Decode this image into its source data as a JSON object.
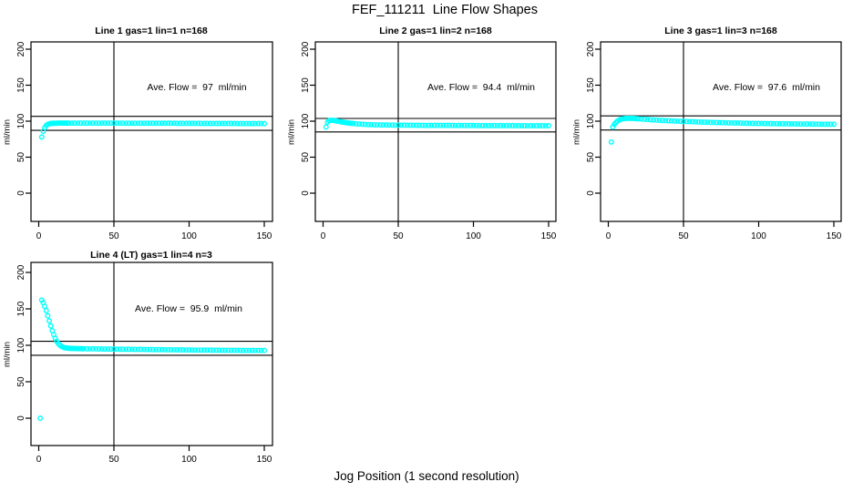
{
  "figure": {
    "title": "FEF_111211  Line Flow Shapes",
    "xlabel": "Jog Position (1 second resolution)",
    "background": "#ffffff",
    "point_color": "#00ffff",
    "line_color": "#000000"
  },
  "chart_data": [
    {
      "type": "scatter",
      "title": "Line 1 gas=1 lin=1 n=168",
      "ylabel": "ml/min",
      "ave_flow_label": "Ave. Flow =  97  ml/min",
      "ave_flow_value": 97,
      "n": 168,
      "xlim": [
        0,
        150
      ],
      "ylim": [
        0,
        200
      ],
      "x_ticks": [
        0,
        50,
        100,
        150
      ],
      "y_ticks": [
        0,
        50,
        100,
        150,
        200
      ],
      "vline_x": 50,
      "hlines": [
        106.7,
        87.3
      ],
      "points": [
        [
          2,
          78
        ],
        [
          3,
          86
        ],
        [
          4,
          91
        ],
        [
          5,
          94
        ],
        [
          6,
          95.5
        ],
        [
          7,
          96.3
        ],
        [
          8,
          96.8
        ],
        [
          9,
          97
        ],
        [
          10,
          97.1
        ],
        [
          11,
          97.2
        ],
        [
          12,
          97.2
        ],
        [
          13,
          97.3
        ],
        [
          14,
          97.3
        ],
        [
          15,
          97.3
        ],
        [
          16,
          97.3
        ],
        [
          17,
          97.3
        ],
        [
          18,
          97.3
        ],
        [
          19,
          97.3
        ],
        [
          20,
          97.3
        ],
        [
          22,
          97.3
        ],
        [
          24,
          97.3
        ],
        [
          26,
          97.3
        ],
        [
          28,
          97.3
        ],
        [
          30,
          97.3
        ],
        [
          32,
          97.3
        ],
        [
          34,
          97.3
        ],
        [
          36,
          97.3
        ],
        [
          38,
          97.3
        ],
        [
          40,
          97.3
        ],
        [
          42,
          97.3
        ],
        [
          44,
          97.3
        ],
        [
          46,
          97.3
        ],
        [
          48,
          97.3
        ],
        [
          50,
          97.3
        ],
        [
          52,
          97.3
        ],
        [
          54,
          97.3
        ],
        [
          56,
          97.2
        ],
        [
          58,
          97.2
        ],
        [
          60,
          97.2
        ],
        [
          62,
          97.2
        ],
        [
          64,
          97.2
        ],
        [
          66,
          97.2
        ],
        [
          68,
          97.2
        ],
        [
          70,
          97.2
        ],
        [
          72,
          97.2
        ],
        [
          74,
          97.2
        ],
        [
          76,
          97.1
        ],
        [
          78,
          97.1
        ],
        [
          80,
          97.1
        ],
        [
          82,
          97.1
        ],
        [
          84,
          97.1
        ],
        [
          86,
          97.1
        ],
        [
          88,
          97.1
        ],
        [
          90,
          97.1
        ],
        [
          92,
          97
        ],
        [
          94,
          97
        ],
        [
          96,
          97
        ],
        [
          98,
          97
        ],
        [
          100,
          97
        ],
        [
          102,
          97
        ],
        [
          104,
          97
        ],
        [
          106,
          97
        ],
        [
          108,
          96.9
        ],
        [
          110,
          96.9
        ],
        [
          112,
          96.9
        ],
        [
          114,
          96.9
        ],
        [
          116,
          96.9
        ],
        [
          118,
          96.9
        ],
        [
          120,
          96.8
        ],
        [
          122,
          96.8
        ],
        [
          124,
          96.8
        ],
        [
          126,
          96.8
        ],
        [
          128,
          96.8
        ],
        [
          130,
          96.8
        ],
        [
          132,
          96.7
        ],
        [
          134,
          96.7
        ],
        [
          136,
          96.7
        ],
        [
          138,
          96.7
        ],
        [
          140,
          96.7
        ],
        [
          142,
          96.7
        ],
        [
          144,
          96.6
        ],
        [
          146,
          96.6
        ],
        [
          148,
          96.6
        ],
        [
          150,
          96.6
        ]
      ]
    },
    {
      "type": "scatter",
      "title": "Line 2 gas=1 lin=2 n=168",
      "ylabel": "ml/min",
      "ave_flow_label": "Ave. Flow =  94.4  ml/min",
      "ave_flow_value": 94.4,
      "n": 168,
      "xlim": [
        0,
        150
      ],
      "ylim": [
        0,
        200
      ],
      "x_ticks": [
        0,
        50,
        100,
        150
      ],
      "y_ticks": [
        0,
        50,
        100,
        150,
        200
      ],
      "vline_x": 50,
      "hlines": [
        103.8,
        85.0
      ],
      "points": [
        [
          2,
          92
        ],
        [
          3,
          98.5
        ],
        [
          4,
          100.6
        ],
        [
          5,
          101.2
        ],
        [
          6,
          101.3
        ],
        [
          7,
          101.1
        ],
        [
          8,
          100.7
        ],
        [
          9,
          100.3
        ],
        [
          10,
          99.9
        ],
        [
          11,
          99.5
        ],
        [
          12,
          99.1
        ],
        [
          13,
          98.7
        ],
        [
          14,
          98.4
        ],
        [
          15,
          98.1
        ],
        [
          16,
          97.8
        ],
        [
          17,
          97.5
        ],
        [
          18,
          97.2
        ],
        [
          19,
          97
        ],
        [
          20,
          96.8
        ],
        [
          22,
          96.4
        ],
        [
          24,
          96.1
        ],
        [
          26,
          95.8
        ],
        [
          28,
          95.5
        ],
        [
          30,
          95.3
        ],
        [
          32,
          95.1
        ],
        [
          34,
          95
        ],
        [
          36,
          94.9
        ],
        [
          38,
          94.8
        ],
        [
          40,
          94.7
        ],
        [
          42,
          94.7
        ],
        [
          44,
          94.6
        ],
        [
          46,
          94.6
        ],
        [
          48,
          94.5
        ],
        [
          50,
          94.5
        ],
        [
          52,
          94.4
        ],
        [
          54,
          94.4
        ],
        [
          56,
          94.4
        ],
        [
          58,
          94.3
        ],
        [
          60,
          94.3
        ],
        [
          62,
          94.3
        ],
        [
          64,
          94.3
        ],
        [
          66,
          94.2
        ],
        [
          68,
          94.2
        ],
        [
          70,
          94.2
        ],
        [
          72,
          94.2
        ],
        [
          74,
          94.2
        ],
        [
          76,
          94.1
        ],
        [
          78,
          94.1
        ],
        [
          80,
          94.1
        ],
        [
          82,
          94.1
        ],
        [
          84,
          94.1
        ],
        [
          86,
          94.1
        ],
        [
          88,
          94
        ],
        [
          90,
          94
        ],
        [
          92,
          94
        ],
        [
          94,
          94
        ],
        [
          96,
          94
        ],
        [
          98,
          94
        ],
        [
          100,
          94
        ],
        [
          102,
          93.9
        ],
        [
          104,
          93.9
        ],
        [
          106,
          93.9
        ],
        [
          108,
          93.9
        ],
        [
          110,
          93.9
        ],
        [
          112,
          93.9
        ],
        [
          114,
          93.9
        ],
        [
          116,
          93.8
        ],
        [
          118,
          93.8
        ],
        [
          120,
          93.8
        ],
        [
          122,
          93.8
        ],
        [
          124,
          93.8
        ],
        [
          126,
          93.8
        ],
        [
          128,
          93.8
        ],
        [
          130,
          93.7
        ],
        [
          132,
          93.7
        ],
        [
          134,
          93.7
        ],
        [
          136,
          93.7
        ],
        [
          138,
          93.7
        ],
        [
          140,
          93.7
        ],
        [
          142,
          93.7
        ],
        [
          144,
          93.6
        ],
        [
          146,
          93.6
        ],
        [
          148,
          93.6
        ],
        [
          150,
          93.6
        ]
      ]
    },
    {
      "type": "scatter",
      "title": "Line 3 gas=1 lin=3 n=168",
      "ylabel": "ml/min",
      "ave_flow_label": "Ave. Flow =  97.6  ml/min",
      "ave_flow_value": 97.6,
      "n": 168,
      "xlim": [
        0,
        150
      ],
      "ylim": [
        0,
        200
      ],
      "x_ticks": [
        0,
        50,
        100,
        150
      ],
      "y_ticks": [
        0,
        50,
        100,
        150,
        200
      ],
      "vline_x": 50,
      "hlines": [
        107.4,
        87.8
      ],
      "points": [
        [
          2,
          71
        ],
        [
          3,
          92
        ],
        [
          4,
          95.5
        ],
        [
          5,
          98
        ],
        [
          6,
          100
        ],
        [
          7,
          101.4
        ],
        [
          8,
          102.4
        ],
        [
          9,
          103
        ],
        [
          10,
          103.4
        ],
        [
          11,
          103.7
        ],
        [
          12,
          103.9
        ],
        [
          13,
          104
        ],
        [
          14,
          104
        ],
        [
          15,
          104
        ],
        [
          16,
          103.9
        ],
        [
          17,
          103.8
        ],
        [
          18,
          103.6
        ],
        [
          19,
          103.5
        ],
        [
          20,
          103.3
        ],
        [
          22,
          103
        ],
        [
          24,
          102.7
        ],
        [
          26,
          102.4
        ],
        [
          28,
          102.1
        ],
        [
          30,
          101.8
        ],
        [
          32,
          101.5
        ],
        [
          34,
          101.3
        ],
        [
          36,
          101
        ],
        [
          38,
          100.8
        ],
        [
          40,
          100.6
        ],
        [
          42,
          100.4
        ],
        [
          44,
          100.2
        ],
        [
          46,
          100
        ],
        [
          48,
          99.8
        ],
        [
          50,
          99.7
        ],
        [
          52,
          99.5
        ],
        [
          54,
          99.3
        ],
        [
          56,
          99.2
        ],
        [
          58,
          99
        ],
        [
          60,
          98.9
        ],
        [
          62,
          98.7
        ],
        [
          64,
          98.6
        ],
        [
          66,
          98.5
        ],
        [
          68,
          98.3
        ],
        [
          70,
          98.2
        ],
        [
          72,
          98.1
        ],
        [
          74,
          98
        ],
        [
          76,
          97.9
        ],
        [
          78,
          97.8
        ],
        [
          80,
          97.7
        ],
        [
          82,
          97.6
        ],
        [
          84,
          97.5
        ],
        [
          86,
          97.4
        ],
        [
          88,
          97.3
        ],
        [
          90,
          97.2
        ],
        [
          92,
          97.1
        ],
        [
          94,
          97
        ],
        [
          96,
          97
        ],
        [
          98,
          96.9
        ],
        [
          100,
          96.8
        ],
        [
          102,
          96.8
        ],
        [
          104,
          96.7
        ],
        [
          106,
          96.6
        ],
        [
          108,
          96.6
        ],
        [
          110,
          96.5
        ],
        [
          112,
          96.5
        ],
        [
          114,
          96.4
        ],
        [
          116,
          96.4
        ],
        [
          118,
          96.3
        ],
        [
          120,
          96.3
        ],
        [
          122,
          96.2
        ],
        [
          124,
          96.2
        ],
        [
          126,
          96.1
        ],
        [
          128,
          96.1
        ],
        [
          130,
          96
        ],
        [
          132,
          96
        ],
        [
          134,
          96
        ],
        [
          136,
          95.9
        ],
        [
          138,
          95.9
        ],
        [
          140,
          95.9
        ],
        [
          142,
          95.8
        ],
        [
          144,
          95.8
        ],
        [
          146,
          95.8
        ],
        [
          148,
          95.7
        ],
        [
          150,
          95.7
        ]
      ]
    },
    {
      "type": "scatter",
      "title": "Line 4 (LT) gas=1 lin=4 n=3",
      "ylabel": "ml/min",
      "ave_flow_label": "Ave. Flow =  95.9  ml/min",
      "ave_flow_value": 95.9,
      "n": 3,
      "xlim": [
        0,
        150
      ],
      "ylim": [
        0,
        200
      ],
      "x_ticks": [
        0,
        50,
        100,
        150
      ],
      "y_ticks": [
        0,
        50,
        100,
        150,
        200
      ],
      "vline_x": 50,
      "hlines": [
        105.5,
        86.3
      ],
      "points": [
        [
          1,
          0
        ],
        [
          2,
          162
        ],
        [
          3,
          158.5
        ],
        [
          4,
          153.5
        ],
        [
          5,
          147.5
        ],
        [
          6,
          140.5
        ],
        [
          7,
          133.5
        ],
        [
          8,
          126.5
        ],
        [
          9,
          120
        ],
        [
          10,
          114.5
        ],
        [
          11,
          109.5
        ],
        [
          12,
          105.5
        ],
        [
          13,
          102.5
        ],
        [
          14,
          100.3
        ],
        [
          15,
          98.7
        ],
        [
          16,
          97.6
        ],
        [
          17,
          96.9
        ],
        [
          18,
          96.4
        ],
        [
          19,
          96.1
        ],
        [
          20,
          95.9
        ],
        [
          21,
          95.8
        ],
        [
          22,
          95.7
        ],
        [
          23,
          95.6
        ],
        [
          24,
          95.6
        ],
        [
          25,
          95.5
        ],
        [
          26,
          95.5
        ],
        [
          27,
          95.4
        ],
        [
          28,
          95.4
        ],
        [
          29,
          95.3
        ],
        [
          30,
          95.3
        ],
        [
          32,
          95.2
        ],
        [
          34,
          95.2
        ],
        [
          36,
          95.1
        ],
        [
          38,
          95.1
        ],
        [
          40,
          95
        ],
        [
          42,
          95
        ],
        [
          44,
          94.9
        ],
        [
          46,
          94.9
        ],
        [
          48,
          94.8
        ],
        [
          50,
          94.8
        ],
        [
          52,
          94.7
        ],
        [
          54,
          94.7
        ],
        [
          56,
          94.6
        ],
        [
          58,
          94.6
        ],
        [
          60,
          94.5
        ],
        [
          62,
          94.5
        ],
        [
          64,
          94.4
        ],
        [
          66,
          94.4
        ],
        [
          68,
          94.3
        ],
        [
          70,
          94.3
        ],
        [
          72,
          94.2
        ],
        [
          74,
          94.2
        ],
        [
          76,
          94.1
        ],
        [
          78,
          94.1
        ],
        [
          80,
          94
        ],
        [
          82,
          94
        ],
        [
          84,
          93.9
        ],
        [
          86,
          93.9
        ],
        [
          88,
          93.9
        ],
        [
          90,
          93.8
        ],
        [
          92,
          93.8
        ],
        [
          94,
          93.7
        ],
        [
          96,
          93.7
        ],
        [
          98,
          93.6
        ],
        [
          100,
          93.6
        ],
        [
          102,
          93.6
        ],
        [
          104,
          93.5
        ],
        [
          106,
          93.5
        ],
        [
          108,
          93.5
        ],
        [
          110,
          93.4
        ],
        [
          112,
          93.4
        ],
        [
          114,
          93.4
        ],
        [
          116,
          93.3
        ],
        [
          118,
          93.3
        ],
        [
          120,
          93.3
        ],
        [
          122,
          93.2
        ],
        [
          124,
          93.2
        ],
        [
          126,
          93.2
        ],
        [
          128,
          93.1
        ],
        [
          130,
          93.1
        ],
        [
          132,
          93.1
        ],
        [
          134,
          93.1
        ],
        [
          136,
          93
        ],
        [
          138,
          93
        ],
        [
          140,
          93
        ],
        [
          142,
          93
        ],
        [
          144,
          92.9
        ],
        [
          146,
          92.9
        ],
        [
          148,
          92.9
        ],
        [
          150,
          92.9
        ]
      ]
    }
  ]
}
